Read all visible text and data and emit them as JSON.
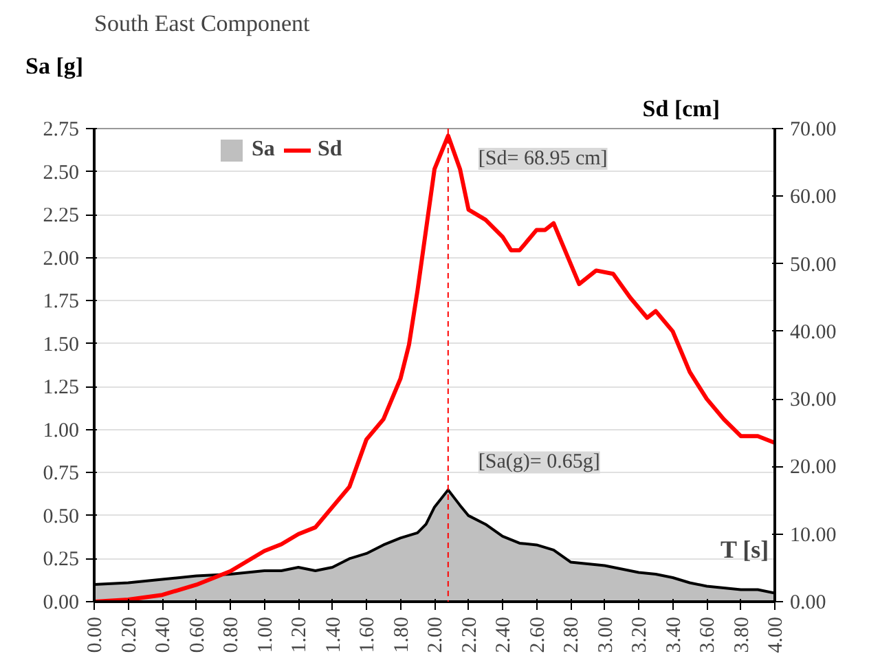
{
  "chart_data": {
    "type": "line",
    "title": "South East Component",
    "xlabel": "T [s]",
    "ylabel": "Sa [g]",
    "y2label": "Sd [cm]",
    "series": [
      {
        "name": "Sa",
        "type": "area",
        "color": "#bfbfbf",
        "x": [
          0,
          0.2,
          0.4,
          0.6,
          0.8,
          1.0,
          1.1,
          1.2,
          1.3,
          1.4,
          1.5,
          1.6,
          1.7,
          1.8,
          1.9,
          1.95,
          2.0,
          2.08,
          2.15,
          2.2,
          2.3,
          2.4,
          2.5,
          2.6,
          2.7,
          2.8,
          2.9,
          3.0,
          3.1,
          3.2,
          3.3,
          3.4,
          3.5,
          3.6,
          3.7,
          3.8,
          3.9,
          4.0
        ],
        "values": [
          0.1,
          0.11,
          0.13,
          0.15,
          0.16,
          0.18,
          0.18,
          0.2,
          0.18,
          0.2,
          0.25,
          0.28,
          0.33,
          0.37,
          0.4,
          0.45,
          0.55,
          0.65,
          0.56,
          0.5,
          0.45,
          0.38,
          0.34,
          0.33,
          0.3,
          0.23,
          0.22,
          0.21,
          0.19,
          0.17,
          0.16,
          0.14,
          0.11,
          0.09,
          0.08,
          0.07,
          0.07,
          0.05
        ]
      },
      {
        "name": "Sd",
        "axis": "y2",
        "color": "#ff0000",
        "x": [
          0,
          0.2,
          0.4,
          0.6,
          0.8,
          1.0,
          1.1,
          1.2,
          1.3,
          1.4,
          1.5,
          1.6,
          1.7,
          1.8,
          1.85,
          1.9,
          1.95,
          2.0,
          2.08,
          2.15,
          2.2,
          2.3,
          2.4,
          2.45,
          2.5,
          2.6,
          2.65,
          2.7,
          2.75,
          2.85,
          2.95,
          3.05,
          3.15,
          3.25,
          3.3,
          3.4,
          3.5,
          3.6,
          3.7,
          3.8,
          3.9,
          4.0
        ],
        "values": [
          0,
          0.3,
          1,
          2.5,
          4.5,
          7.5,
          8.5,
          10,
          11,
          14,
          17,
          24,
          27,
          33,
          38,
          46,
          55,
          64,
          68.95,
          64,
          58,
          56.5,
          54,
          52,
          52,
          55,
          55,
          56,
          53,
          47,
          49,
          48.5,
          45,
          42,
          43,
          40,
          34,
          30,
          27,
          24.5,
          24.5,
          23.5
        ]
      }
    ],
    "xlim": [
      0,
      4
    ],
    "xticks": [
      {
        "value": 0,
        "label": "0.00"
      },
      {
        "value": 0.2,
        "label": "0.20"
      },
      {
        "value": 0.4,
        "label": "0.40"
      },
      {
        "value": 0.6,
        "label": "0.60"
      },
      {
        "value": 0.8,
        "label": "0.80"
      },
      {
        "value": 1.0,
        "label": "1.00"
      },
      {
        "value": 1.2,
        "label": "1.20"
      },
      {
        "value": 1.4,
        "label": "1.40"
      },
      {
        "value": 1.6,
        "label": "1.60"
      },
      {
        "value": 1.8,
        "label": "1.80"
      },
      {
        "value": 2.0,
        "label": "2.00"
      },
      {
        "value": 2.2,
        "label": "2.20"
      },
      {
        "value": 2.4,
        "label": "2.40"
      },
      {
        "value": 2.6,
        "label": "2.60"
      },
      {
        "value": 2.8,
        "label": "2.80"
      },
      {
        "value": 3.0,
        "label": "3.00"
      },
      {
        "value": 3.2,
        "label": "3.20"
      },
      {
        "value": 3.4,
        "label": "3.40"
      },
      {
        "value": 3.6,
        "label": "3.60"
      },
      {
        "value": 3.8,
        "label": "3.80"
      },
      {
        "value": 4.0,
        "label": "4.00"
      }
    ],
    "ylim": [
      0,
      2.75
    ],
    "yticks": [
      {
        "value": 0,
        "label": "0.00"
      },
      0.25,
      {
        "value": 0.5,
        "label": "0.50"
      },
      0.75,
      {
        "value": 1.0,
        "label": "1.00"
      },
      1.25,
      {
        "value": 1.5,
        "label": "1.50"
      },
      1.75,
      {
        "value": 2.0,
        "label": "2.00"
      },
      2.25,
      {
        "value": 2.5,
        "label": "2.50"
      },
      2.75
    ],
    "y2lim": [
      0,
      70
    ],
    "y2ticks": [
      {
        "value": 0,
        "label": "0.00"
      },
      {
        "value": 10,
        "label": "10.00"
      },
      {
        "value": 20,
        "label": "20.00"
      },
      {
        "value": 30,
        "label": "30.00"
      },
      {
        "value": 40,
        "label": "40.00"
      },
      {
        "value": 50,
        "label": "50.00"
      },
      {
        "value": 60,
        "label": "60.00"
      },
      {
        "value": 70,
        "label": "70.00"
      }
    ],
    "ref_lines": [
      {
        "axis": "x",
        "value": 2.08,
        "color": "#ff0000",
        "line_style": "dashed"
      }
    ],
    "annotations": [
      "[Sd= 68.95 cm]",
      "[Sa(g)= 0.65g]"
    ],
    "grid": "y",
    "legend": "top"
  }
}
